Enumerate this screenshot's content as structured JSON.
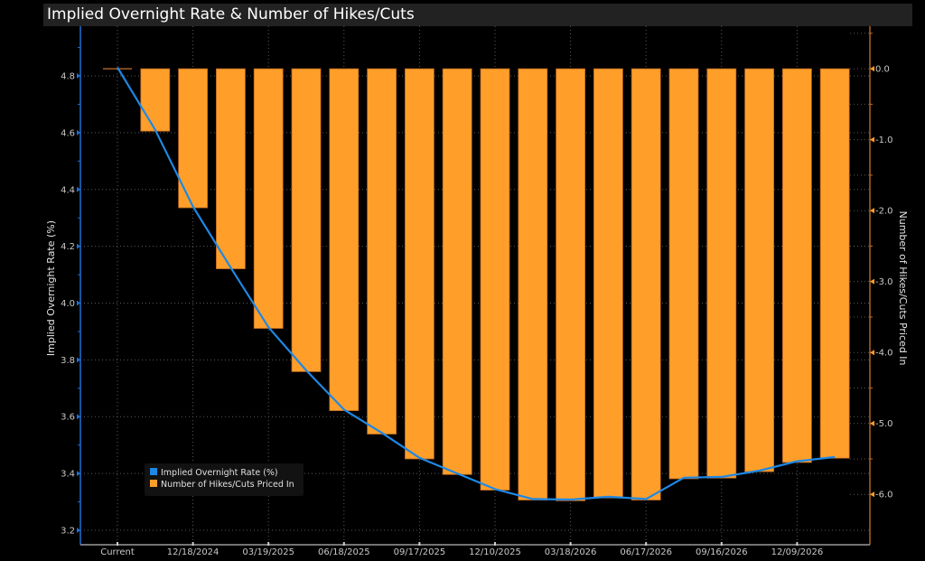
{
  "title": "Implied Overnight Rate & Number of Hikes/Cuts",
  "chart_data": {
    "type": "bar",
    "title": "Implied Overnight Rate & Number of Hikes/Cuts",
    "categories": [
      "Current",
      "",
      "12/18/2024",
      "",
      "03/19/2025",
      "",
      "06/18/2025",
      "",
      "09/17/2025",
      "",
      "12/10/2025",
      "",
      "03/18/2026",
      "",
      "06/17/2026",
      "",
      "09/16/2026",
      "",
      "12/09/2026",
      ""
    ],
    "x_tick_labels": [
      "Current",
      "12/18/2024",
      "03/19/2025",
      "06/18/2025",
      "09/17/2025",
      "12/10/2025",
      "03/18/2026",
      "06/17/2026",
      "09/16/2026",
      "12/09/2026"
    ],
    "x_tick_indices": [
      0,
      2,
      4,
      6,
      8,
      10,
      12,
      14,
      16,
      18
    ],
    "series": [
      {
        "name": "Number of Hikes/Cuts Priced In",
        "type": "bar",
        "axis": "right",
        "color": "#ff9f2a",
        "values": [
          0,
          -0.88,
          -1.96,
          -2.82,
          -3.66,
          -4.27,
          -4.82,
          -5.15,
          -5.5,
          -5.72,
          -5.94,
          -6.08,
          -6.09,
          -6.05,
          -6.08,
          -5.78,
          -5.77,
          -5.68,
          -5.55,
          -5.49
        ]
      },
      {
        "name": "Implied Overnight Rate (%)",
        "type": "line",
        "axis": "left",
        "color": "#1e88e5",
        "values": [
          4.83,
          4.61,
          4.34,
          4.125,
          3.915,
          3.763,
          3.625,
          3.543,
          3.455,
          3.4,
          3.345,
          3.31,
          3.308,
          3.318,
          3.31,
          3.385,
          3.388,
          3.41,
          3.443,
          3.458
        ]
      }
    ],
    "left_axis": {
      "label": "Implied Overnight Rate (%)",
      "ylim": [
        3.149,
        4.975
      ],
      "ticks": [
        4.8,
        4.6,
        4.4,
        4.2,
        4.0,
        3.8,
        3.6,
        3.4,
        3.2
      ],
      "tick_labels": [
        "4.8",
        "4.6",
        "4.4",
        "4.2",
        "4.0",
        "3.8",
        "3.6",
        "3.4",
        "3.2"
      ],
      "color": "#1e6fd9"
    },
    "right_axis": {
      "label": "Number of Hikes/Cuts Priced In",
      "ylim": [
        -6.71,
        0.6
      ],
      "ticks": [
        0,
        -1,
        -2,
        -3,
        -4,
        -5,
        -6
      ],
      "tick_labels": [
        "0.0",
        "-1.0",
        "-2.0",
        "-3.0",
        "-4.0",
        "-5.0",
        "-6.0"
      ],
      "color": "#c8722a"
    },
    "legend": {
      "placement": "bottom-left",
      "entries": [
        "Implied Overnight Rate (%)",
        "Number of Hikes/Cuts Priced In"
      ]
    },
    "grid": true
  }
}
